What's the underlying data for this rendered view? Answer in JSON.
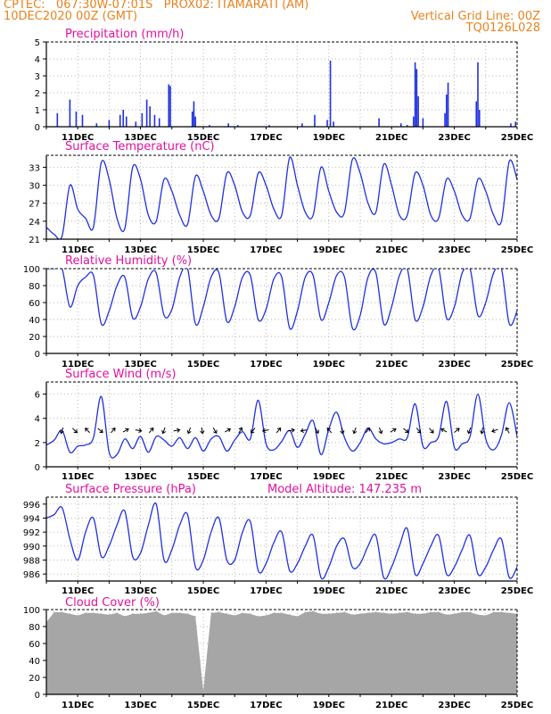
{
  "header": {
    "line1_left": "CPTEC:   067:30W-07:01S   PROX02: ITAMARATI (AM)",
    "line2_left": "10DEC2020 00Z (GMT)",
    "line2_right": "Vertical Grid Line: 00Z",
    "line3_right": "TQ0126L028"
  },
  "colors": {
    "header": "#e8821e",
    "title": "#e0119e",
    "series": "#2030e0",
    "cloud": "#a6a6a6",
    "grid": "#9a9a9a"
  },
  "x_axis": {
    "start": "10DEC2020 00Z",
    "end": "25DEC2020 00Z",
    "tick_labels": [
      "11DEC",
      "13DEC",
      "15DEC",
      "17DEC",
      "19DEC",
      "21DEC",
      "23DEC",
      "25DEC"
    ],
    "tick_days": [
      1,
      3,
      5,
      7,
      9,
      11,
      13,
      15
    ]
  },
  "chart_data": [
    {
      "type": "bar",
      "title": "Precipitation (mm/h)",
      "ylim": [
        0,
        5
      ],
      "yticks": [
        "0",
        "1",
        "2",
        "3",
        "4",
        "5"
      ],
      "x_units": "days after 10DEC2020 00Z",
      "bars": [
        {
          "x": 0.35,
          "y": 0.8
        },
        {
          "x": 0.75,
          "y": 1.6
        },
        {
          "x": 0.95,
          "y": 0.9
        },
        {
          "x": 1.15,
          "y": 0.7
        },
        {
          "x": 1.6,
          "y": 0.2
        },
        {
          "x": 2.0,
          "y": 0.4
        },
        {
          "x": 2.35,
          "y": 0.7
        },
        {
          "x": 2.45,
          "y": 1.0
        },
        {
          "x": 2.55,
          "y": 0.6
        },
        {
          "x": 2.85,
          "y": 0.3
        },
        {
          "x": 3.05,
          "y": 0.8
        },
        {
          "x": 3.2,
          "y": 1.6
        },
        {
          "x": 3.3,
          "y": 1.2
        },
        {
          "x": 3.45,
          "y": 0.7
        },
        {
          "x": 3.6,
          "y": 0.5
        },
        {
          "x": 3.9,
          "y": 2.5
        },
        {
          "x": 3.95,
          "y": 2.4
        },
        {
          "x": 4.65,
          "y": 0.9
        },
        {
          "x": 4.7,
          "y": 1.5
        },
        {
          "x": 4.75,
          "y": 0.6
        },
        {
          "x": 5.2,
          "y": 0.1
        },
        {
          "x": 5.8,
          "y": 0.2
        },
        {
          "x": 6.1,
          "y": 0.1
        },
        {
          "x": 7.1,
          "y": 0.1
        },
        {
          "x": 8.15,
          "y": 0.2
        },
        {
          "x": 8.55,
          "y": 0.7
        },
        {
          "x": 8.95,
          "y": 0.4
        },
        {
          "x": 9.05,
          "y": 3.9
        },
        {
          "x": 9.15,
          "y": 0.3
        },
        {
          "x": 10.6,
          "y": 0.5
        },
        {
          "x": 11.3,
          "y": 0.2
        },
        {
          "x": 11.5,
          "y": 0.1
        },
        {
          "x": 11.7,
          "y": 0.6
        },
        {
          "x": 11.75,
          "y": 3.8
        },
        {
          "x": 11.8,
          "y": 3.4
        },
        {
          "x": 11.85,
          "y": 1.8
        },
        {
          "x": 12.0,
          "y": 0.5
        },
        {
          "x": 12.7,
          "y": 0.8
        },
        {
          "x": 12.75,
          "y": 1.9
        },
        {
          "x": 12.8,
          "y": 2.6
        },
        {
          "x": 13.7,
          "y": 1.5
        },
        {
          "x": 13.75,
          "y": 3.8
        },
        {
          "x": 13.8,
          "y": 1.0
        },
        {
          "x": 14.8,
          "y": 0.2
        },
        {
          "x": 14.95,
          "y": 0.3
        }
      ]
    },
    {
      "type": "line",
      "title": "Surface Temperature (nC)",
      "ylim": [
        21,
        35
      ],
      "yticks": [
        "21",
        "24",
        "27",
        "30",
        "33"
      ],
      "x_units": "days after 10DEC2020 00Z",
      "x": [
        0,
        0.25,
        0.5,
        0.75,
        1,
        1.25,
        1.5,
        1.75,
        2,
        2.25,
        2.5,
        2.75,
        3,
        3.25,
        3.5,
        3.75,
        4,
        4.25,
        4.5,
        4.75,
        5,
        5.25,
        5.5,
        5.75,
        6,
        6.25,
        6.5,
        6.75,
        7,
        7.25,
        7.5,
        7.75,
        8,
        8.25,
        8.5,
        8.75,
        9,
        9.25,
        9.5,
        9.75,
        10,
        10.25,
        10.5,
        10.75,
        11,
        11.25,
        11.5,
        11.75,
        12,
        12.25,
        12.5,
        12.75,
        13,
        13.25,
        13.5,
        13.75,
        14,
        14.25,
        14.5,
        14.75,
        15
      ],
      "values": [
        23,
        21.8,
        21.5,
        30,
        26,
        24.5,
        23,
        33.8,
        31,
        24.5,
        22.8,
        33,
        31,
        25,
        24,
        31,
        29,
        25,
        23.5,
        31.5,
        29,
        25,
        24.5,
        32,
        30,
        25.5,
        25,
        32,
        30,
        26,
        25,
        34.6,
        30,
        25.5,
        25,
        33,
        29,
        25.5,
        25.5,
        34.3,
        32,
        27,
        25.5,
        33.5,
        30,
        25,
        25,
        32,
        30,
        25,
        24.5,
        31,
        29,
        25,
        24.5,
        31,
        29,
        25,
        24,
        34,
        31
      ]
    },
    {
      "type": "line",
      "title": "Relative Humidity (%)",
      "ylim": [
        0,
        100
      ],
      "yticks": [
        "0",
        "20",
        "40",
        "60",
        "80",
        "100"
      ],
      "x_units": "days after 10DEC2020 00Z",
      "x": [
        0,
        0.25,
        0.5,
        0.75,
        1,
        1.25,
        1.5,
        1.75,
        2,
        2.25,
        2.5,
        2.75,
        3,
        3.25,
        3.5,
        3.75,
        4,
        4.25,
        4.5,
        4.75,
        5,
        5.25,
        5.5,
        5.75,
        6,
        6.25,
        6.5,
        6.75,
        7,
        7.25,
        7.5,
        7.75,
        8,
        8.25,
        8.5,
        8.75,
        9,
        9.25,
        9.5,
        9.75,
        10,
        10.25,
        10.5,
        10.75,
        11,
        11.25,
        11.5,
        11.75,
        12,
        12.25,
        12.5,
        12.75,
        13,
        13.25,
        13.5,
        13.75,
        14,
        14.25,
        14.5,
        14.75,
        15
      ],
      "values": [
        100,
        100,
        100,
        55,
        80,
        90,
        92,
        35,
        50,
        80,
        90,
        42,
        55,
        88,
        95,
        45,
        52,
        90,
        100,
        35,
        55,
        90,
        95,
        38,
        55,
        90,
        92,
        40,
        52,
        88,
        90,
        30,
        50,
        90,
        92,
        40,
        60,
        92,
        90,
        30,
        45,
        90,
        95,
        35,
        55,
        92,
        100,
        40,
        55,
        92,
        100,
        42,
        55,
        95,
        100,
        45,
        60,
        95,
        100,
        35,
        50
      ]
    },
    {
      "type": "line",
      "title": "Surface Wind (m/s)",
      "ylim": [
        0,
        7
      ],
      "yticks": [
        "0",
        "2",
        "4",
        "6"
      ],
      "x_units": "days after 10DEC2020 00Z",
      "x": [
        0,
        0.25,
        0.5,
        0.75,
        1,
        1.25,
        1.5,
        1.75,
        2,
        2.25,
        2.5,
        2.75,
        3,
        3.25,
        3.5,
        3.75,
        4,
        4.25,
        4.5,
        4.75,
        5,
        5.25,
        5.5,
        5.75,
        6,
        6.25,
        6.5,
        6.75,
        7,
        7.25,
        7.5,
        7.75,
        8,
        8.25,
        8.5,
        8.75,
        9,
        9.25,
        9.5,
        9.75,
        10,
        10.25,
        10.5,
        10.75,
        11,
        11.25,
        11.5,
        11.75,
        12,
        12.25,
        12.5,
        12.75,
        13,
        13.25,
        13.5,
        13.75,
        14,
        14.25,
        14.5,
        14.75,
        15
      ],
      "values": [
        1.8,
        2.2,
        3.0,
        1.2,
        1.7,
        1.8,
        2.4,
        5.8,
        1.2,
        1.0,
        2.3,
        1.5,
        2.5,
        1.2,
        2.5,
        2.2,
        1.7,
        2.4,
        1.5,
        2.4,
        1.3,
        2.3,
        2.5,
        1.3,
        2.2,
        2.9,
        2.3,
        5.5,
        1.9,
        1.4,
        2.1,
        3.0,
        1.6,
        2.7,
        3.8,
        1.0,
        3.1,
        4.5,
        2.4,
        1.3,
        2.0,
        3.2,
        2.3,
        1.9,
        2.0,
        2.3,
        2.4,
        5.2,
        1.7,
        2.0,
        2.5,
        5.4,
        1.6,
        1.9,
        2.5,
        6.0,
        2.3,
        1.4,
        2.6,
        5.3,
        2.5
      ]
    },
    {
      "type": "line",
      "title": "Surface Pressure (hPa)",
      "annotation": "Model Altitude: 147.235 m",
      "ylim": [
        985,
        997
      ],
      "yticks": [
        "986",
        "988",
        "990",
        "992",
        "994",
        "996"
      ],
      "x_units": "days after 10DEC2020 00Z",
      "x": [
        0,
        0.25,
        0.5,
        0.75,
        1,
        1.25,
        1.5,
        1.75,
        2,
        2.25,
        2.5,
        2.75,
        3,
        3.25,
        3.5,
        3.75,
        4,
        4.25,
        4.5,
        4.75,
        5,
        5.25,
        5.5,
        5.75,
        6,
        6.25,
        6.5,
        6.75,
        7,
        7.25,
        7.5,
        7.75,
        8,
        8.25,
        8.5,
        8.75,
        9,
        9.25,
        9.5,
        9.75,
        10,
        10.25,
        10.5,
        10.75,
        11,
        11.25,
        11.5,
        11.75,
        12,
        12.25,
        12.5,
        12.75,
        13,
        13.25,
        13.5,
        13.75,
        14,
        14.25,
        14.5,
        14.75,
        15
      ],
      "values": [
        994,
        994.5,
        995.5,
        991,
        988,
        992,
        994,
        988.5,
        990,
        993,
        995,
        988.5,
        989,
        993,
        996,
        988,
        989.5,
        993,
        994.5,
        987,
        988,
        992,
        994,
        988,
        988,
        992,
        993.5,
        986.5,
        987.5,
        990.5,
        992,
        986.5,
        987.5,
        990,
        991.5,
        985.5,
        987,
        990,
        991,
        987,
        987.5,
        990,
        991.5,
        985.5,
        987,
        990,
        992.5,
        986,
        987.5,
        990,
        991.5,
        986,
        987,
        989.5,
        991.5,
        986,
        987,
        989.5,
        991,
        985.5,
        987
      ]
    },
    {
      "type": "bar",
      "title": "Cloud Cover (%)",
      "ylim": [
        0,
        100
      ],
      "yticks": [
        "0",
        "20",
        "40",
        "60",
        "80",
        "100"
      ],
      "x_units": "days after 10DEC2020 00Z",
      "x": [
        0,
        0.25,
        0.5,
        0.75,
        1,
        1.25,
        1.5,
        1.75,
        2,
        2.25,
        2.5,
        2.75,
        3,
        3.25,
        3.5,
        3.75,
        4,
        4.25,
        4.5,
        4.75,
        5,
        5.25,
        5.5,
        5.75,
        6,
        6.25,
        6.5,
        6.75,
        7,
        7.25,
        7.5,
        7.75,
        8,
        8.25,
        8.5,
        8.75,
        9,
        9.25,
        9.5,
        9.75,
        10,
        10.25,
        10.5,
        10.75,
        11,
        11.25,
        11.5,
        11.75,
        12,
        12.25,
        12.5,
        12.75,
        13,
        13.25,
        13.5,
        13.75,
        14,
        14.25,
        14.5,
        14.75,
        15
      ],
      "values": [
        85,
        97,
        97,
        95,
        93,
        96,
        96,
        95,
        94,
        96,
        92,
        95,
        95,
        96,
        98,
        93,
        96,
        96,
        95,
        92,
        4,
        96,
        97,
        95,
        93,
        96,
        95,
        92,
        93,
        96,
        96,
        94,
        92,
        97,
        98,
        95,
        95,
        96,
        97,
        94,
        95,
        96,
        97,
        96,
        95,
        96,
        97,
        95,
        95,
        97,
        97,
        94,
        95,
        97,
        97,
        94,
        93,
        97,
        97,
        96,
        95
      ]
    }
  ]
}
